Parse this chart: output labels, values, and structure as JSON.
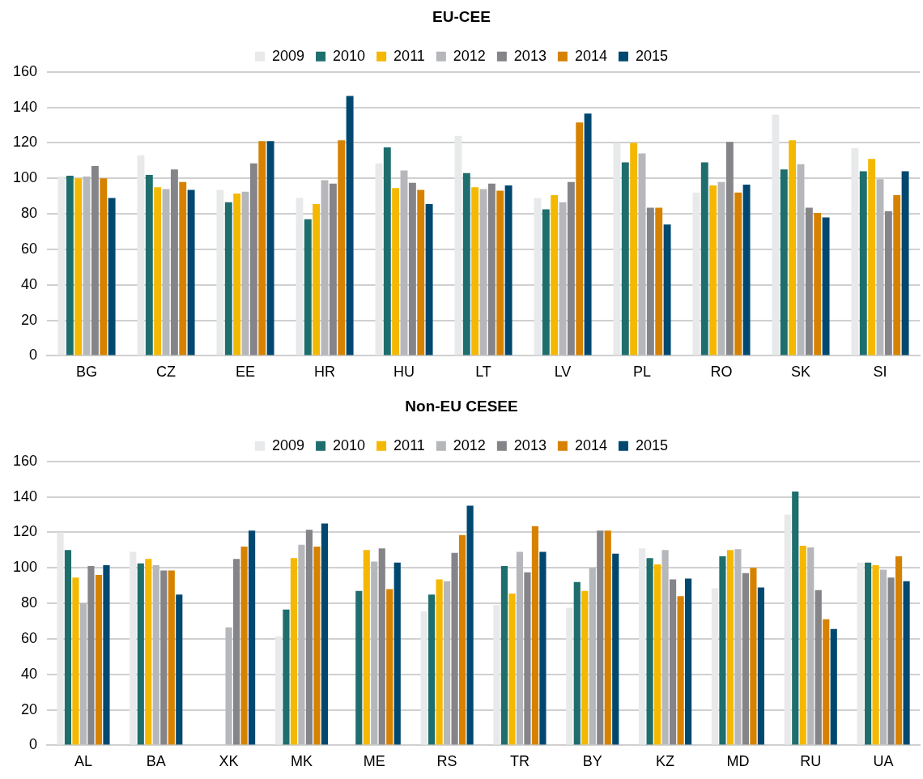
{
  "chart_data": [
    {
      "type": "bar",
      "title": "EU-CEE",
      "categories": [
        "BG",
        "CZ",
        "EE",
        "HR",
        "HU",
        "LT",
        "LV",
        "PL",
        "RO",
        "SK",
        "SI"
      ],
      "series": [
        {
          "name": "2009",
          "color": "#e8e9ea",
          "values": [
            101,
            113,
            93.5,
            89,
            108.5,
            124,
            89,
            120,
            92,
            136,
            117
          ]
        },
        {
          "name": "2010",
          "color": "#1f6e6e",
          "values": [
            101.5,
            102,
            86.5,
            77,
            117.5,
            103,
            82.5,
            109,
            109,
            105,
            104
          ]
        },
        {
          "name": "2011",
          "color": "#f5b800",
          "values": [
            100,
            95,
            91.5,
            85.5,
            94.5,
            95,
            90.5,
            120,
            96,
            121.5,
            111
          ]
        },
        {
          "name": "2012",
          "color": "#b6b7ba",
          "values": [
            101,
            94,
            92.5,
            99,
            104.5,
            94,
            86.5,
            114,
            98,
            108,
            99.5
          ]
        },
        {
          "name": "2013",
          "color": "#848489",
          "values": [
            107,
            105,
            108.5,
            97,
            97.5,
            97,
            98,
            83.5,
            120.5,
            83.5,
            81.5
          ]
        },
        {
          "name": "2014",
          "color": "#d68200",
          "values": [
            100,
            98,
            121,
            121.5,
            93.5,
            93,
            131.5,
            83.5,
            92,
            80.5,
            90.5
          ]
        },
        {
          "name": "2015",
          "color": "#004870",
          "values": [
            89,
            93.5,
            121,
            146.5,
            85.5,
            96,
            136.5,
            74,
            96.5,
            78,
            104
          ]
        }
      ],
      "ylim": [
        0,
        160
      ],
      "yticks": [
        0,
        20,
        40,
        60,
        80,
        100,
        120,
        140,
        160
      ],
      "grid": "y",
      "legend": "top"
    },
    {
      "type": "bar",
      "title": "Non-EU CESEE",
      "categories": [
        "AL",
        "BA",
        "XK",
        "MK",
        "ME",
        "RS",
        "TR",
        "BY",
        "KZ",
        "MD",
        "RU",
        "UA"
      ],
      "series": [
        {
          "name": "2009",
          "color": "#e8e9ea",
          "values": [
            120,
            109,
            null,
            61.5,
            null,
            75.5,
            79,
            77.5,
            111,
            88.5,
            130,
            103
          ]
        },
        {
          "name": "2010",
          "color": "#1f6e6e",
          "values": [
            110,
            102.5,
            null,
            76.5,
            87,
            85,
            101,
            92,
            105.5,
            106.5,
            143,
            103
          ]
        },
        {
          "name": "2011",
          "color": "#f5b800",
          "values": [
            94.5,
            105,
            null,
            105.5,
            110,
            93.5,
            85.5,
            87,
            102,
            110,
            112.5,
            101.5
          ]
        },
        {
          "name": "2012",
          "color": "#b6b7ba",
          "values": [
            80,
            101.5,
            66.5,
            113,
            103.5,
            92.5,
            109,
            100,
            110,
            110.5,
            111.5,
            99
          ]
        },
        {
          "name": "2013",
          "color": "#848489",
          "values": [
            101,
            98.5,
            105,
            121.5,
            111,
            108.5,
            97.5,
            121,
            93.5,
            97,
            87.5,
            94.5
          ]
        },
        {
          "name": "2014",
          "color": "#d68200",
          "values": [
            96,
            98.5,
            112,
            112,
            88,
            118.5,
            123.5,
            121,
            84,
            100,
            71,
            106.5
          ]
        },
        {
          "name": "2015",
          "color": "#004870",
          "values": [
            101.5,
            85,
            121,
            125,
            103,
            135,
            109,
            108,
            94,
            89,
            65.5,
            92.5
          ]
        }
      ],
      "ylim": [
        0,
        160
      ],
      "yticks": [
        0,
        20,
        40,
        60,
        80,
        100,
        120,
        140,
        160
      ],
      "grid": "y",
      "legend": "top"
    }
  ]
}
